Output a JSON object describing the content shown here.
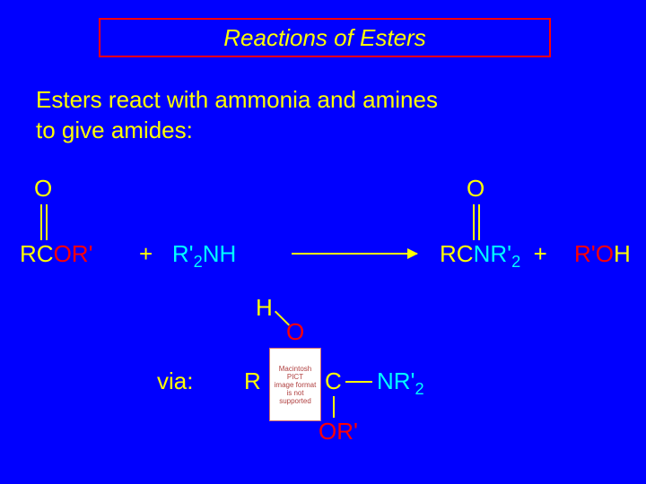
{
  "colors": {
    "background": "#0000ff",
    "title_border": "#ff0000",
    "title_text": "#ffff00",
    "body_text": "#ffff00",
    "R_text": "#ffff00",
    "O_highlight": "#ff0000",
    "N_highlight": "#00ffff",
    "bond_yellow": "#ffff00",
    "arrow": "#ffff00",
    "H_text": "#ffff00",
    "via_text": "#ffff00"
  },
  "title": "Reactions of Esters",
  "body_line1": "Esters react with ammonia and amines",
  "body_line2": "to give amides:",
  "reagents": {
    "ester_O": "O",
    "ester_R": "R",
    "ester_C": "C",
    "ester_OR": "O",
    "ester_Rprime": "R'",
    "plus1": "+",
    "amine_R": "R'",
    "amine_sub2": "2",
    "amine_N": "N",
    "amine_H": "H",
    "amide_O": "O",
    "amide_R": "R",
    "amide_C": "C",
    "amide_N": "N",
    "amide_Rprime": "R'",
    "amide_sub2": "2",
    "plus2": "+",
    "roh_R": "R'",
    "roh_O": "O",
    "roh_H": "H"
  },
  "via_label": "via:",
  "intermediate": {
    "H": "H",
    "O_top": "O",
    "R": "R",
    "C": "C",
    "NRprime": "N",
    "NRprime_R": "R'",
    "NRprime_sub2": "2",
    "OR_bottom_O": "O",
    "OR_bottom_R": "R'"
  },
  "placeholder": {
    "line1": "Macintosh PICT",
    "line2": "image format",
    "line3": "is not supported"
  },
  "layout": {
    "title_fontsize": 26,
    "body_fontsize": 26,
    "chem_fontsize": 26
  }
}
